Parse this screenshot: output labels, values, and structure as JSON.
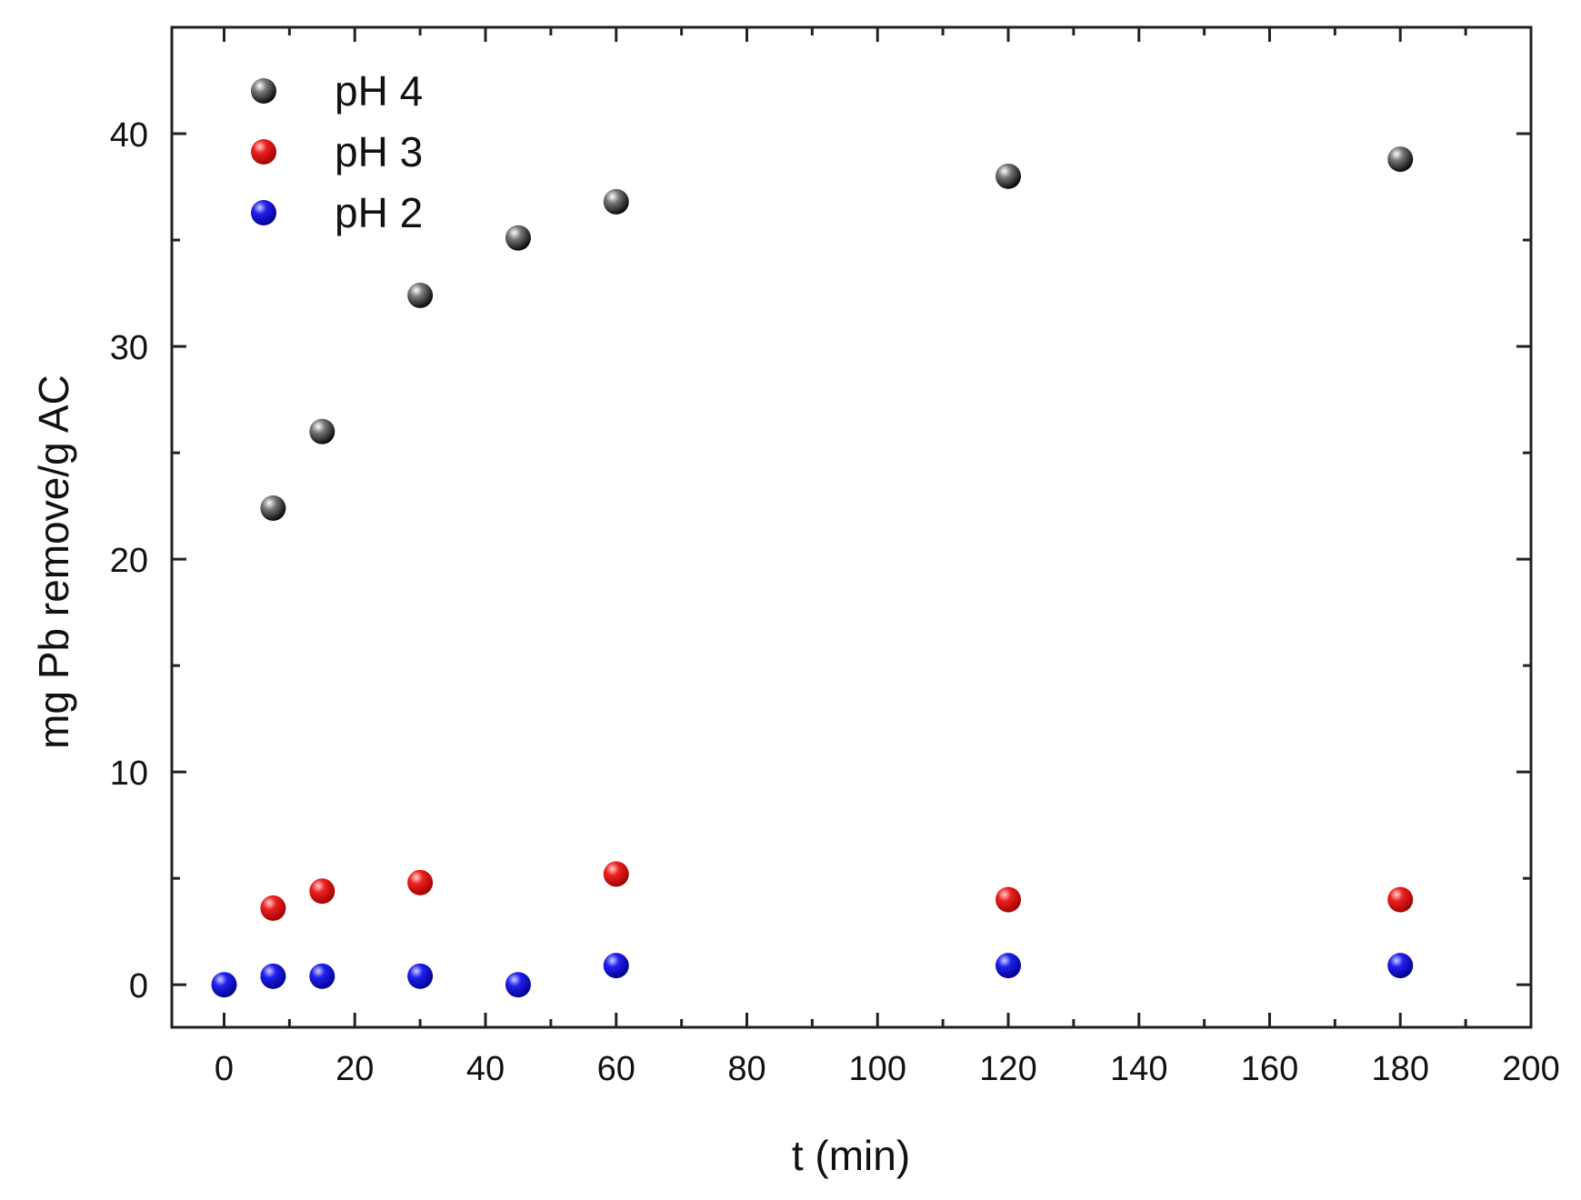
{
  "chart_data": {
    "type": "scatter",
    "title": "",
    "xlabel": "t (min)",
    "ylabel": "mg Pb remove/g AC",
    "xlim": [
      -8,
      200
    ],
    "ylim": [
      -2,
      45
    ],
    "x_ticks": [
      0,
      20,
      40,
      60,
      80,
      100,
      120,
      140,
      160,
      180,
      200
    ],
    "y_ticks": [
      0,
      10,
      20,
      30,
      40
    ],
    "grid": false,
    "legend_position": "top-left",
    "series": [
      {
        "name": "pH 4",
        "color": "#111111",
        "x": [
          7.5,
          15,
          30,
          45,
          60,
          120,
          180
        ],
        "y": [
          22.4,
          26.0,
          32.4,
          35.1,
          36.8,
          38.0,
          38.8
        ]
      },
      {
        "name": "pH 3",
        "color": "#dd0000",
        "x": [
          7.5,
          15,
          30,
          60,
          120,
          180
        ],
        "y": [
          3.6,
          4.4,
          4.8,
          5.2,
          4.0,
          4.0
        ]
      },
      {
        "name": "pH 2",
        "color": "#0000cc",
        "x": [
          0,
          7.5,
          15,
          30,
          45,
          60,
          120,
          180
        ],
        "y": [
          0.0,
          0.4,
          0.4,
          0.4,
          0.0,
          0.9,
          0.9,
          0.9
        ]
      }
    ]
  }
}
